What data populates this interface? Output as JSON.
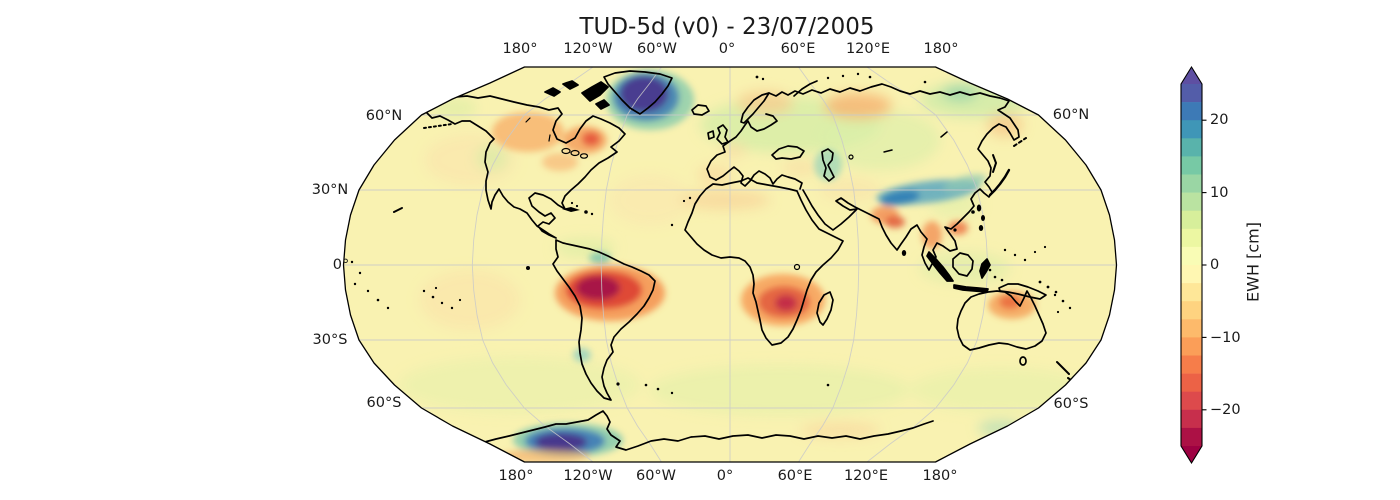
{
  "figure": {
    "title": "TUD-5d (v0) - 23/07/2005"
  },
  "map": {
    "projection": "Robinson",
    "top_axis_labels": [
      "180°",
      "120°W",
      "60°W",
      "0°",
      "60°E",
      "120°E",
      "180°"
    ],
    "bottom_axis_labels": [
      "180°",
      "120°W",
      "60°W",
      "0°",
      "60°E",
      "120°E",
      "180°"
    ],
    "left_axis_labels": [
      "60°N",
      "30°N",
      "0°",
      "30°S",
      "60°S"
    ],
    "right_axis_labels": [
      "60°N",
      "60°S"
    ]
  },
  "colorbar": {
    "label": "EWH [cm]",
    "tick_labels": [
      "20",
      "10",
      "0",
      "−10",
      "−20"
    ],
    "tick_values": [
      20,
      10,
      0,
      -10,
      -20
    ],
    "range": [
      -25,
      25
    ],
    "colors_top_to_bottom": [
      "#535da9",
      "#3d7ab6",
      "#3f96b7",
      "#59b3ab",
      "#77c9a5",
      "#9ad6a4",
      "#bae3a1",
      "#d7ef9b",
      "#ecf7a2",
      "#f9fcb5",
      "#fff7b2",
      "#fee798",
      "#fed380",
      "#fdba6b",
      "#fb9e58",
      "#f67d4a",
      "#ec6246",
      "#dd4a4c",
      "#c72f4c",
      "#ac1145"
    ],
    "extend_over_color": "#5e4fa2",
    "extend_under_color": "#9e0142",
    "outline_color": "#000000"
  },
  "chart_data": {
    "type": "heatmap",
    "title": "TUD-5d (v0) - 23/07/2005",
    "description": "Global map of equivalent water height anomalies on a Robinson projection with coastlines and a discrete Spectral colormap",
    "colorbar_label": "EWH [cm]",
    "colorbar_ticks": [
      20,
      10,
      0,
      -10,
      -20
    ],
    "colorbar_range": [
      -25,
      25
    ],
    "colormap": "Spectral, 20 discrete bins, extended arrows both ends",
    "projection": "Robinson",
    "gridlines": {
      "meridian_interval_deg": 60,
      "parallel_interval_deg": 30,
      "color": "light gray"
    },
    "background_field_ewh_cm": 0,
    "notable_anomalies": [
      {
        "region": "Greenland",
        "ewh_cm": 25,
        "sign": "positive"
      },
      {
        "region": "West Antarctica",
        "ewh_cm": 24,
        "sign": "positive"
      },
      {
        "region": "Himalaya / Tibetan plateau band",
        "ewh_cm": 17,
        "sign": "positive"
      },
      {
        "region": "Caspian Sea",
        "ewh_cm": 8,
        "sign": "positive"
      },
      {
        "region": "Amazon basin",
        "ewh_cm": -24,
        "sign": "negative"
      },
      {
        "region": "Southern Africa (Zambezi region)",
        "ewh_cm": -18,
        "sign": "negative"
      },
      {
        "region": "Eastern Canada / Quebec",
        "ewh_cm": -12,
        "sign": "negative"
      },
      {
        "region": "Western Siberia",
        "ewh_cm": -8,
        "sign": "negative"
      },
      {
        "region": "Northwest India / Bangladesh",
        "ewh_cm": -12,
        "sign": "negative"
      },
      {
        "region": "Mainland Southeast Asia",
        "ewh_cm": -10,
        "sign": "negative"
      },
      {
        "region": "Northern Australia",
        "ewh_cm": -8,
        "sign": "negative"
      }
    ]
  }
}
